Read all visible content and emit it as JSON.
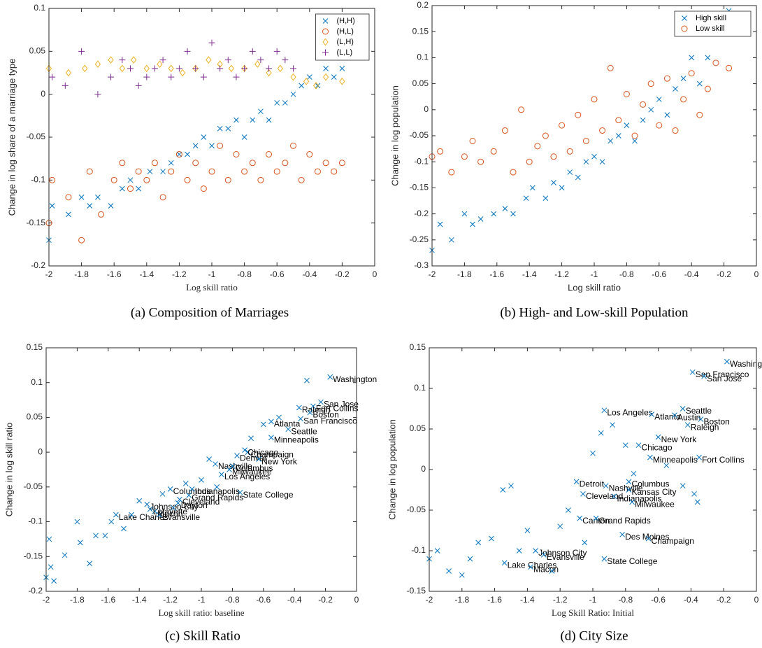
{
  "chart_data": [
    {
      "type": "scatter",
      "caption": "(a) Composition of Marriages",
      "xlabel": "Log skill ratio",
      "ylabel": "Change in log share of a marriage type",
      "xlim": [
        -2,
        0
      ],
      "ylim": [
        -0.2,
        0.1
      ],
      "xticks": [
        -2,
        -1.8,
        -1.6,
        -1.4,
        -1.2,
        -1,
        -0.8,
        -0.6,
        -0.4,
        -0.2,
        0
      ],
      "yticks": [
        -0.2,
        -0.15,
        -0.1,
        -0.05,
        0,
        0.05,
        0.1
      ],
      "legend": "upper right",
      "series": [
        {
          "name": "(H,H)",
          "color": "#0072bd",
          "marker": "x",
          "x": [
            -2,
            -1.98,
            -1.88,
            -1.8,
            -1.75,
            -1.7,
            -1.62,
            -1.55,
            -1.5,
            -1.45,
            -1.38,
            -1.3,
            -1.25,
            -1.2,
            -1.15,
            -1.1,
            -1.05,
            -1,
            -0.95,
            -0.9,
            -0.85,
            -0.8,
            -0.75,
            -0.7,
            -0.65,
            -0.6,
            -0.55,
            -0.5,
            -0.45,
            -0.4,
            -0.35,
            -0.3,
            -0.25,
            -0.2
          ],
          "values": [
            -0.17,
            -0.13,
            -0.14,
            -0.12,
            -0.13,
            -0.12,
            -0.13,
            -0.11,
            -0.1,
            -0.11,
            -0.09,
            -0.09,
            -0.08,
            -0.07,
            -0.07,
            -0.06,
            -0.05,
            -0.06,
            -0.04,
            -0.04,
            -0.03,
            -0.05,
            -0.03,
            -0.02,
            -0.03,
            -0.01,
            -0.01,
            0,
            0.01,
            0.02,
            0.01,
            0.03,
            0.02,
            0.03
          ]
        },
        {
          "name": "(H,L)",
          "color": "#d95319",
          "marker": "o",
          "x": [
            -2,
            -1.98,
            -1.88,
            -1.8,
            -1.75,
            -1.68,
            -1.6,
            -1.55,
            -1.5,
            -1.45,
            -1.4,
            -1.35,
            -1.3,
            -1.25,
            -1.2,
            -1.15,
            -1.1,
            -1.05,
            -1,
            -0.95,
            -0.9,
            -0.85,
            -0.8,
            -0.75,
            -0.7,
            -0.65,
            -0.6,
            -0.55,
            -0.5,
            -0.45,
            -0.4,
            -0.35,
            -0.3,
            -0.25,
            -0.2
          ],
          "values": [
            -0.15,
            -0.1,
            -0.12,
            -0.17,
            -0.09,
            -0.14,
            -0.1,
            -0.08,
            -0.11,
            -0.09,
            -0.1,
            -0.08,
            -0.12,
            -0.09,
            -0.07,
            -0.1,
            -0.08,
            -0.11,
            -0.09,
            -0.06,
            -0.1,
            -0.07,
            -0.09,
            -0.08,
            -0.1,
            -0.07,
            -0.09,
            -0.08,
            -0.06,
            -0.1,
            -0.07,
            -0.09,
            -0.08,
            -0.09,
            -0.08
          ]
        },
        {
          "name": "(L,H)",
          "color": "#edb120",
          "marker": "d",
          "x": [
            -2,
            -1.88,
            -1.78,
            -1.7,
            -1.62,
            -1.55,
            -1.48,
            -1.4,
            -1.32,
            -1.25,
            -1.18,
            -1.1,
            -1.02,
            -0.95,
            -0.88,
            -0.8,
            -0.72,
            -0.65,
            -0.58,
            -0.5,
            -0.42,
            -0.36,
            -0.3,
            -0.2
          ],
          "values": [
            0.03,
            0.025,
            0.03,
            0.035,
            0.04,
            0.03,
            0.04,
            0.03,
            0.035,
            0.03,
            0.025,
            0.03,
            0.04,
            0.035,
            0.03,
            0.03,
            0.035,
            0.025,
            0.03,
            0.02,
            0.015,
            0.01,
            0.02,
            0.015
          ]
        },
        {
          "name": "(L,L)",
          "color": "#7e2f8e",
          "marker": "+",
          "x": [
            -1.98,
            -1.9,
            -1.8,
            -1.7,
            -1.62,
            -1.55,
            -1.5,
            -1.45,
            -1.4,
            -1.35,
            -1.3,
            -1.25,
            -1.2,
            -1.15,
            -1.1,
            -1.05,
            -1,
            -0.95,
            -0.9,
            -0.85,
            -0.8,
            -0.75,
            -0.7,
            -0.65,
            -0.6,
            -0.55,
            -0.5
          ],
          "values": [
            0.02,
            0.01,
            0.05,
            0,
            0.02,
            0.04,
            0.03,
            0.01,
            0.02,
            0.03,
            0.04,
            0.02,
            0.03,
            0.05,
            0.03,
            0.02,
            0.06,
            0.03,
            0.04,
            0.02,
            0.03,
            0.05,
            0.04,
            0.03,
            0.05,
            0.04,
            0.03
          ]
        }
      ]
    },
    {
      "type": "scatter",
      "caption": "(b) High- and Low-skill Population",
      "xlabel": "Log skill ratio",
      "ylabel": "Change in log population",
      "xlim": [
        -2,
        0
      ],
      "ylim": [
        -0.3,
        0.2
      ],
      "xticks": [
        -2,
        -1.8,
        -1.6,
        -1.4,
        -1.2,
        -1,
        -0.8,
        -0.6,
        -0.4,
        -0.2,
        0
      ],
      "yticks": [
        -0.3,
        -0.25,
        -0.2,
        -0.15,
        -0.1,
        -0.05,
        0,
        0.05,
        0.1,
        0.15,
        0.2
      ],
      "legend": "upper right",
      "series": [
        {
          "name": "High skill",
          "color": "#0072bd",
          "marker": "x",
          "x": [
            -2,
            -1.95,
            -1.88,
            -1.8,
            -1.75,
            -1.7,
            -1.62,
            -1.55,
            -1.5,
            -1.42,
            -1.38,
            -1.3,
            -1.25,
            -1.2,
            -1.15,
            -1.1,
            -1.05,
            -1,
            -0.95,
            -0.9,
            -0.85,
            -0.8,
            -0.75,
            -0.7,
            -0.65,
            -0.6,
            -0.55,
            -0.5,
            -0.45,
            -0.4,
            -0.35,
            -0.3,
            -0.17
          ],
          "values": [
            -0.27,
            -0.22,
            -0.25,
            -0.2,
            -0.22,
            -0.21,
            -0.2,
            -0.19,
            -0.2,
            -0.17,
            -0.15,
            -0.17,
            -0.14,
            -0.15,
            -0.12,
            -0.13,
            -0.1,
            -0.09,
            -0.1,
            -0.06,
            -0.05,
            -0.03,
            -0.06,
            -0.02,
            0,
            0.02,
            -0.01,
            0.04,
            0.06,
            0.1,
            0.05,
            0.1,
            0.19
          ]
        },
        {
          "name": "Low skill",
          "color": "#d95319",
          "marker": "o",
          "x": [
            -2,
            -1.95,
            -1.88,
            -1.8,
            -1.75,
            -1.7,
            -1.62,
            -1.55,
            -1.5,
            -1.45,
            -1.4,
            -1.35,
            -1.3,
            -1.25,
            -1.2,
            -1.15,
            -1.1,
            -1.05,
            -1,
            -0.95,
            -0.9,
            -0.85,
            -0.8,
            -0.75,
            -0.7,
            -0.65,
            -0.6,
            -0.55,
            -0.5,
            -0.45,
            -0.4,
            -0.35,
            -0.3,
            -0.25,
            -0.17
          ],
          "values": [
            -0.09,
            -0.08,
            -0.12,
            -0.09,
            -0.06,
            -0.1,
            -0.08,
            -0.04,
            -0.12,
            0,
            -0.1,
            -0.07,
            -0.05,
            -0.09,
            -0.03,
            -0.08,
            -0.01,
            -0.06,
            0.02,
            -0.04,
            0.08,
            -0.02,
            0.03,
            -0.05,
            0.01,
            0.05,
            -0.03,
            0.06,
            -0.04,
            0.02,
            0.07,
            -0.01,
            0.04,
            0.09,
            0.08
          ]
        }
      ]
    },
    {
      "type": "scatter",
      "caption": "(c) Skill Ratio",
      "xlabel": "Log skill ratio: baseline",
      "ylabel": "Change in log skill ratio",
      "xlim": [
        -2,
        0
      ],
      "ylim": [
        -0.2,
        0.15
      ],
      "xticks": [
        -2,
        -1.8,
        -1.6,
        -1.4,
        -1.2,
        -1,
        -0.8,
        -0.6,
        -0.4,
        -0.2,
        0
      ],
      "yticks": [
        -0.2,
        -0.15,
        -0.1,
        -0.05,
        0,
        0.05,
        0.1,
        0.15
      ],
      "series": [
        {
          "color": "#0072bd",
          "marker": "x",
          "x": [
            -0.17,
            -0.23,
            -0.28,
            -0.37,
            -0.3,
            -0.36,
            -0.55,
            -0.44,
            -0.55,
            -0.7,
            -0.72,
            -0.77,
            -0.63,
            -0.91,
            -0.8,
            -0.82,
            -0.87,
            -0.75,
            -1.2,
            -1.06,
            -1.08,
            -1.14,
            -1.15,
            -1.3,
            -1.55,
            -1.27,
            -1.35,
            -1.33,
            -2,
            -1.98,
            -1.97,
            -1.95,
            -1.88,
            -1.8,
            -1.78,
            -1.72,
            -1.68,
            -1.62,
            -1.58,
            -1.5,
            -1.45,
            -1.4,
            -1.25,
            -1.18,
            -1.1,
            -1,
            -0.95,
            -0.9,
            -0.68,
            -0.6,
            -0.5,
            -0.32
          ],
          "values": [
            0.108,
            0.072,
            0.066,
            0.064,
            0.057,
            0.048,
            0.044,
            0.033,
            0.021,
            0,
            0.003,
            -0.005,
            -0.01,
            -0.017,
            -0.02,
            -0.025,
            -0.032,
            -0.058,
            -0.053,
            -0.053,
            -0.062,
            -0.068,
            -0.073,
            -0.085,
            -0.09,
            -0.09,
            -0.075,
            -0.082,
            -0.18,
            -0.125,
            -0.165,
            -0.185,
            -0.148,
            -0.1,
            -0.13,
            -0.16,
            -0.12,
            -0.12,
            -0.1,
            -0.11,
            -0.09,
            -0.07,
            -0.06,
            -0.08,
            -0.045,
            -0.04,
            -0.01,
            -0.05,
            0.02,
            0.04,
            0.05,
            0.103
          ],
          "labels": [
            "Washington",
            "San Jose",
            "Fort Collins",
            "Raleigh",
            "Boston",
            "San Francisco",
            "Atlanta",
            "Seattle",
            "Minneapolis",
            "Champaign",
            "Chicago",
            "Denver",
            "New York",
            "Nashville",
            "Columbus",
            "Milwaukee",
            "Los Angeles",
            "State College",
            "Columbus",
            "Indianapolis",
            "Grand Rapids",
            "Cleveland",
            "Dayton",
            "Macon",
            "Lake Charles",
            "Evansville",
            "Johnson City",
            "Lafayette",
            null,
            null,
            null,
            null,
            null,
            null,
            null,
            null,
            null,
            null,
            null,
            null,
            null,
            null,
            null,
            null,
            null,
            null,
            null,
            null,
            null,
            null,
            null,
            null
          ]
        }
      ]
    },
    {
      "type": "scatter",
      "caption": "(d) City Size",
      "xlabel": "Log Skill Ratio: Initial",
      "ylabel": "Change in log population",
      "xlim": [
        -2,
        0
      ],
      "ylim": [
        -0.15,
        0.15
      ],
      "xticks": [
        -2,
        -1.8,
        -1.6,
        -1.4,
        -1.2,
        -1,
        -0.8,
        -0.6,
        -0.4,
        -0.2,
        0
      ],
      "yticks": [
        -0.15,
        -0.1,
        -0.05,
        0,
        0.05,
        0.1,
        0.15
      ],
      "series": [
        {
          "color": "#0072bd",
          "marker": "x",
          "x": [
            -0.18,
            -0.39,
            -0.32,
            -0.93,
            -0.45,
            -0.64,
            -0.5,
            -0.34,
            -0.42,
            -0.6,
            -0.72,
            -0.65,
            -0.35,
            -1.1,
            -0.78,
            -0.92,
            -0.78,
            -1.06,
            -0.87,
            -0.76,
            -1.08,
            -0.98,
            -0.82,
            -0.66,
            -1.35,
            -1.3,
            -1.54,
            -1.38,
            -0.93,
            -2,
            -1.95,
            -1.88,
            -1.8,
            -1.75,
            -1.7,
            -1.62,
            -1.55,
            -1.5,
            -1.45,
            -1.4,
            -1.25,
            -1.2,
            -1.15,
            -1.05,
            -1,
            -0.95,
            -0.88,
            -0.8,
            -0.75,
            -0.55,
            -0.45,
            -0.38,
            -0.36
          ],
          "values": [
            0.133,
            0.12,
            0.115,
            0.073,
            0.075,
            0.068,
            0.067,
            0.062,
            0.055,
            0.04,
            0.03,
            0.015,
            0.015,
            -0.015,
            -0.015,
            -0.02,
            -0.025,
            -0.03,
            -0.033,
            -0.04,
            -0.06,
            -0.06,
            -0.08,
            -0.085,
            -0.1,
            -0.105,
            -0.115,
            -0.12,
            -0.11,
            -0.11,
            -0.1,
            -0.125,
            -0.13,
            -0.11,
            -0.09,
            -0.085,
            -0.025,
            -0.02,
            -0.1,
            -0.075,
            -0.125,
            -0.07,
            -0.05,
            -0.09,
            0.02,
            0.045,
            0.055,
            0.03,
            -0.005,
            0.005,
            -0.02,
            -0.03,
            -0.04
          ],
          "labels": [
            "Washington",
            "San Francisco",
            "San Jose",
            "Los Angeles",
            "Seattle",
            "Atlanta",
            "Austin",
            "Boston",
            "Raleigh",
            "New York",
            "Chicago",
            "Minneapolis",
            "Fort Collins",
            "Detroit",
            "Columbus",
            "Nashville",
            "Kansas City",
            "Cleveland",
            "Indianapolis",
            "Milwaukee",
            "Canton",
            "Grand Rapids",
            "Des Moines",
            "Champaign",
            "Johnson City",
            "Evansville",
            "Lake Charles",
            "Macon",
            "State College",
            null,
            null,
            null,
            null,
            null,
            null,
            null,
            null,
            null,
            null,
            null,
            null,
            null,
            null,
            null,
            null,
            null,
            null,
            null,
            null,
            null,
            null,
            null,
            null
          ]
        }
      ]
    }
  ]
}
